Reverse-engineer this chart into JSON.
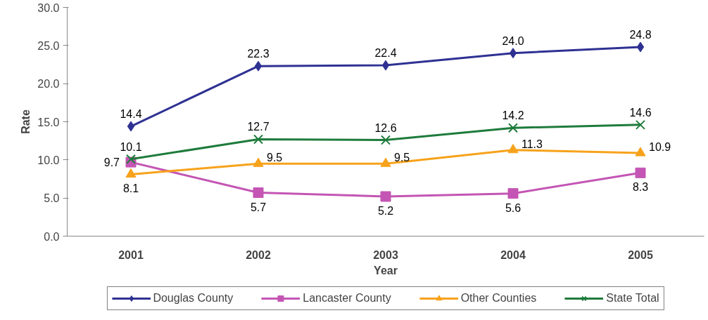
{
  "chart_data": {
    "type": "line",
    "xlabel": "Year",
    "ylabel": "Rate",
    "categories": [
      "2001",
      "2002",
      "2003",
      "2004",
      "2005"
    ],
    "series": [
      {
        "name": "Douglas County",
        "color": "#2e3192",
        "marker": "diamond",
        "values": [
          14.4,
          22.3,
          22.4,
          24.0,
          24.8
        ],
        "value_labels": [
          "14.4",
          "22.3",
          "22.4",
          "24.0",
          "24.8"
        ]
      },
      {
        "name": "Lancaster County",
        "color": "#c455b4",
        "marker": "square",
        "values": [
          9.7,
          5.7,
          5.2,
          5.6,
          8.3
        ],
        "value_labels": [
          "9.7",
          "5.7",
          "5.2",
          "5.6",
          "8.3"
        ]
      },
      {
        "name": "Other Counties",
        "color": "#f7a21b",
        "marker": "triangle",
        "values": [
          8.1,
          9.5,
          9.5,
          11.3,
          10.9
        ],
        "value_labels": [
          "8.1",
          "9.5",
          "9.5",
          "11.3",
          "10.9"
        ]
      },
      {
        "name": "State Total",
        "color": "#1e7b3c",
        "marker": "cross",
        "values": [
          10.1,
          12.7,
          12.6,
          14.2,
          14.6
        ],
        "value_labels": [
          "10.1",
          "12.7",
          "12.6",
          "14.2",
          "14.6"
        ]
      }
    ],
    "ylim": [
      0,
      30
    ],
    "yticks": [
      {
        "value": 0,
        "label": "0.0"
      },
      {
        "value": 5,
        "label": "5.0"
      },
      {
        "value": 10,
        "label": "10.0"
      },
      {
        "value": 15,
        "label": "15.0"
      },
      {
        "value": 20,
        "label": "20.0"
      },
      {
        "value": 25,
        "label": "25.0"
      },
      {
        "value": 30,
        "label": "30.0"
      }
    ],
    "grid": false,
    "legend": "bottom",
    "data_labels": true,
    "line_style": "solid"
  }
}
